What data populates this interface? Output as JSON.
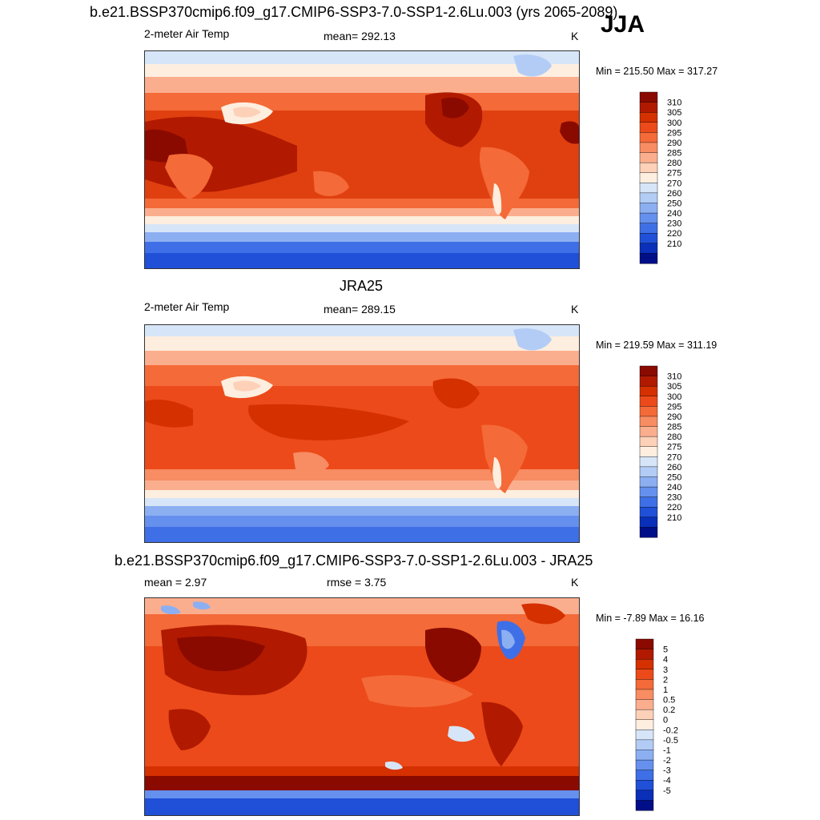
{
  "header": {
    "season": "JJA"
  },
  "panels": [
    {
      "title": "b.e21.BSSP370cmip6.f09_g17.CMIP6-SSP3-7.0-SSP1-2.6Lu.003 (yrs 2065-2089)",
      "left_label": "2-meter Air Temp",
      "center_label": "mean= 292.13",
      "units": "K",
      "minmax": "Min = 215.50 Max = 317.27",
      "colorbar_key": "abs"
    },
    {
      "title": "JRA25",
      "left_label": "2-meter Air Temp",
      "center_label": "mean= 289.15",
      "units": "K",
      "minmax": "Min = 219.59 Max = 311.19",
      "colorbar_key": "abs"
    },
    {
      "title": "b.e21.BSSP370cmip6.f09_g17.CMIP6-SSP3-7.0-SSP1-2.6Lu.003 - JRA25",
      "left_label": "mean =   2.97",
      "center_label": "rmse =   3.75",
      "units": "K",
      "minmax": "Min =  -7.89 Max =  16.16",
      "colorbar_key": "diff"
    }
  ],
  "chart_data": [
    {
      "type": "heatmap",
      "title": "b.e21.BSSP370cmip6.f09_g17.CMIP6-SSP3-7.0-SSP1-2.6Lu.003 (yrs 2065-2089)",
      "variable": "2-meter Air Temp",
      "units": "K",
      "mean": 292.13,
      "min": 215.5,
      "max": 317.27,
      "colorbar_levels": [
        210,
        220,
        230,
        240,
        250,
        260,
        270,
        275,
        280,
        285,
        290,
        295,
        300,
        305,
        310
      ]
    },
    {
      "type": "heatmap",
      "title": "JRA25",
      "variable": "2-meter Air Temp",
      "units": "K",
      "mean": 289.15,
      "min": 219.59,
      "max": 311.19,
      "colorbar_levels": [
        210,
        220,
        230,
        240,
        250,
        260,
        270,
        275,
        280,
        285,
        290,
        295,
        300,
        305,
        310
      ]
    },
    {
      "type": "heatmap",
      "title": "b.e21.BSSP370cmip6.f09_g17.CMIP6-SSP3-7.0-SSP1-2.6Lu.003 - JRA25",
      "units": "K",
      "mean": 2.97,
      "rmse": 3.75,
      "min": -7.89,
      "max": 16.16,
      "colorbar_levels": [
        -5,
        -4,
        -3,
        -2,
        -1,
        -0.5,
        -0.2,
        0,
        0.2,
        0.5,
        1,
        2,
        3,
        4,
        5
      ]
    }
  ],
  "colorbars": {
    "abs": {
      "labels": [
        "310",
        "305",
        "300",
        "295",
        "290",
        "285",
        "280",
        "275",
        "270",
        "260",
        "250",
        "240",
        "230",
        "220",
        "210"
      ],
      "colors": [
        "#8b0a00",
        "#b11a00",
        "#d53000",
        "#ec4a1a",
        "#f46a38",
        "#f88c62",
        "#fbae8e",
        "#fdd0b8",
        "#fdeedf",
        "#d7e5f8",
        "#b2ccf5",
        "#8caff2",
        "#6590ee",
        "#3f6fe6",
        "#2050d8",
        "#0a2fb8",
        "#000e88"
      ]
    },
    "diff": {
      "labels": [
        "5",
        "4",
        "3",
        "2",
        "1",
        "0.5",
        "0.2",
        "0",
        "-0.2",
        "-0.5",
        "-1",
        "-2",
        "-3",
        "-4",
        "-5"
      ],
      "colors": [
        "#8b0a00",
        "#b11a00",
        "#d53000",
        "#ec4a1a",
        "#f46a38",
        "#f88c62",
        "#fbae8e",
        "#fdd0b8",
        "#fdeedf",
        "#d7e5f8",
        "#b2ccf5",
        "#8caff2",
        "#6590ee",
        "#3f6fe6",
        "#2050d8",
        "#0a2fb8",
        "#000e88"
      ]
    }
  }
}
